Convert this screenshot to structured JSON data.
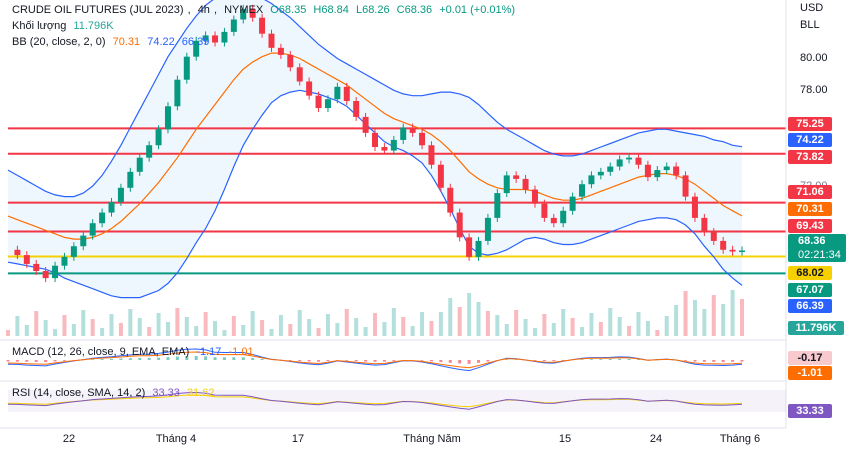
{
  "header": {
    "symbol": "CRUDE OIL FUTURES (JUL 2023)",
    "interval": "4h",
    "exchange": "NYMEX",
    "ohlc": {
      "open": "O68.35",
      "high": "H68.84",
      "low": "L68.26",
      "close": "C68.36",
      "change": "+0.01 (+0.01%)"
    }
  },
  "indicators": {
    "volume": {
      "label": "Khối lượng",
      "value": "11.796K"
    },
    "bb": {
      "label": "BB (20, close, 2, 0)",
      "basis": "70.31",
      "upper": "74.22",
      "lower": "66.39"
    },
    "macd": {
      "label": "MACD (12, 26, close, 9, EMA, EMA)",
      "v1": "-1.17",
      "v2": "-1.01"
    },
    "rsi": {
      "label": "RSI (14, close, SMA, 14, 2)",
      "v1": "33.33",
      "v2": "31.62"
    }
  },
  "axis": {
    "currency": "USD",
    "unit": "BLL",
    "ticks": [
      "80.00",
      "78.00",
      "72.00"
    ]
  },
  "price_tags": [
    {
      "value": "75.25",
      "color": "#f23645"
    },
    {
      "value": "74.22",
      "color": "#2962ff"
    },
    {
      "value": "73.82",
      "color": "#f23645"
    },
    {
      "value": "71.06",
      "color": "#f23645"
    },
    {
      "value": "70.31",
      "color": "#ff6d00"
    },
    {
      "value": "69.43",
      "color": "#f23645"
    },
    {
      "value": "68.36",
      "color": "#089981",
      "countdown": "02:21:34"
    },
    {
      "value": "68.02",
      "color": "#f7d000"
    },
    {
      "value": "67.07",
      "color": "#089981"
    },
    {
      "value": "66.39",
      "color": "#2962ff"
    },
    {
      "value": "11.796K",
      "color": "#26a69a"
    }
  ],
  "macd_tags": [
    {
      "value": "-0.17",
      "color": "#f8c9cd",
      "text": "#131722"
    },
    {
      "value": "-1.01",
      "color": "#ff6d00",
      "text": "#ffffff"
    }
  ],
  "rsi_tags": [
    {
      "value": "33.33",
      "color": "#7e57c2",
      "text": "#ffffff"
    }
  ],
  "time_labels": [
    "22",
    "Tháng 4",
    "17",
    "Tháng Năm",
    "15",
    "24",
    "Tháng 6"
  ],
  "chart_data": {
    "type": "line",
    "y_range": [
      65.0,
      82.5
    ],
    "horizontal_levels": [
      {
        "value": 75.25,
        "color": "#f23645"
      },
      {
        "value": 73.82,
        "color": "#f23645"
      },
      {
        "value": 71.06,
        "color": "#f23645"
      },
      {
        "value": 69.43,
        "color": "#f23645"
      },
      {
        "value": 68.02,
        "color": "#f7d000"
      },
      {
        "value": 67.07,
        "color": "#089981"
      }
    ],
    "close": [
      68.4,
      68.1,
      67.6,
      67.2,
      66.8,
      67.5,
      68.0,
      68.6,
      69.2,
      69.9,
      70.5,
      71.1,
      71.9,
      72.8,
      73.6,
      74.3,
      75.2,
      76.5,
      78.0,
      79.3,
      80.2,
      80.5,
      80.1,
      80.7,
      81.4,
      82.0,
      81.5,
      80.6,
      79.8,
      79.4,
      78.7,
      77.9,
      77.1,
      76.4,
      76.9,
      77.6,
      76.8,
      75.9,
      75.0,
      74.2,
      74.0,
      74.6,
      75.3,
      75.0,
      74.3,
      73.2,
      71.9,
      70.5,
      69.1,
      68.0,
      68.9,
      70.2,
      71.6,
      72.6,
      72.4,
      71.8,
      71.0,
      70.2,
      69.9,
      70.6,
      71.4,
      72.1,
      72.6,
      72.8,
      73.1,
      73.5,
      73.6,
      73.2,
      72.5,
      72.9,
      73.1,
      72.6,
      71.4,
      70.2,
      69.4,
      68.9,
      68.4,
      68.3,
      68.36
    ],
    "bb_basis": [
      70.3,
      70.1,
      69.9,
      69.7,
      69.5,
      69.3,
      69.1,
      69.0,
      69.0,
      69.1,
      69.3,
      69.6,
      70.0,
      70.5,
      71.0,
      71.6,
      72.2,
      72.9,
      73.6,
      74.4,
      75.2,
      75.9,
      76.6,
      77.3,
      78.0,
      78.6,
      79.0,
      79.3,
      79.5,
      79.5,
      79.4,
      79.2,
      78.9,
      78.6,
      78.3,
      78.0,
      77.7,
      77.3,
      76.9,
      76.5,
      76.1,
      75.8,
      75.6,
      75.4,
      75.2,
      74.9,
      74.5,
      74.0,
      73.4,
      72.8,
      72.4,
      72.1,
      71.9,
      71.8,
      71.8,
      71.8,
      71.7,
      71.5,
      71.3,
      71.2,
      71.2,
      71.3,
      71.5,
      71.7,
      71.9,
      72.1,
      72.3,
      72.5,
      72.6,
      72.7,
      72.7,
      72.6,
      72.4,
      72.1,
      71.7,
      71.3,
      70.9,
      70.6,
      70.31
    ],
    "bb_upper": [
      72.9,
      72.6,
      72.3,
      72.0,
      71.7,
      71.5,
      71.4,
      71.4,
      71.6,
      72.0,
      72.6,
      73.4,
      74.3,
      75.3,
      76.3,
      77.3,
      78.3,
      79.3,
      80.1,
      80.9,
      81.6,
      82.2,
      82.6,
      82.8,
      82.9,
      82.9,
      82.8,
      82.6,
      82.3,
      81.9,
      81.5,
      81.0,
      80.5,
      80.0,
      79.6,
      79.2,
      78.9,
      78.6,
      78.3,
      78.0,
      77.7,
      77.4,
      77.2,
      77.1,
      77.1,
      77.2,
      77.3,
      77.3,
      77.2,
      77.0,
      76.6,
      76.1,
      75.6,
      75.2,
      74.9,
      74.6,
      74.3,
      74.0,
      73.8,
      73.7,
      73.7,
      73.8,
      74.0,
      74.2,
      74.4,
      74.6,
      74.8,
      75.0,
      75.1,
      75.2,
      75.2,
      75.1,
      75.0,
      74.9,
      74.8,
      74.6,
      74.5,
      74.3,
      74.22
    ],
    "bb_lower": [
      67.7,
      67.6,
      67.5,
      67.4,
      67.3,
      67.1,
      66.8,
      66.6,
      66.4,
      66.2,
      66.0,
      65.8,
      65.7,
      65.7,
      65.7,
      65.9,
      66.1,
      66.5,
      67.1,
      67.9,
      68.8,
      69.6,
      70.6,
      71.8,
      73.1,
      74.3,
      75.2,
      76.0,
      76.7,
      77.1,
      77.3,
      77.4,
      77.3,
      77.2,
      77.0,
      76.8,
      76.5,
      76.0,
      75.5,
      75.0,
      74.5,
      74.2,
      74.0,
      73.7,
      73.3,
      72.6,
      71.7,
      70.7,
      69.6,
      68.6,
      68.2,
      68.1,
      68.2,
      68.4,
      68.7,
      69.0,
      69.1,
      69.0,
      68.8,
      68.7,
      68.7,
      68.8,
      69.0,
      69.2,
      69.4,
      69.6,
      69.8,
      70.0,
      70.1,
      70.2,
      70.2,
      70.1,
      69.8,
      69.3,
      68.6,
      68.0,
      67.3,
      66.8,
      66.39
    ]
  }
}
